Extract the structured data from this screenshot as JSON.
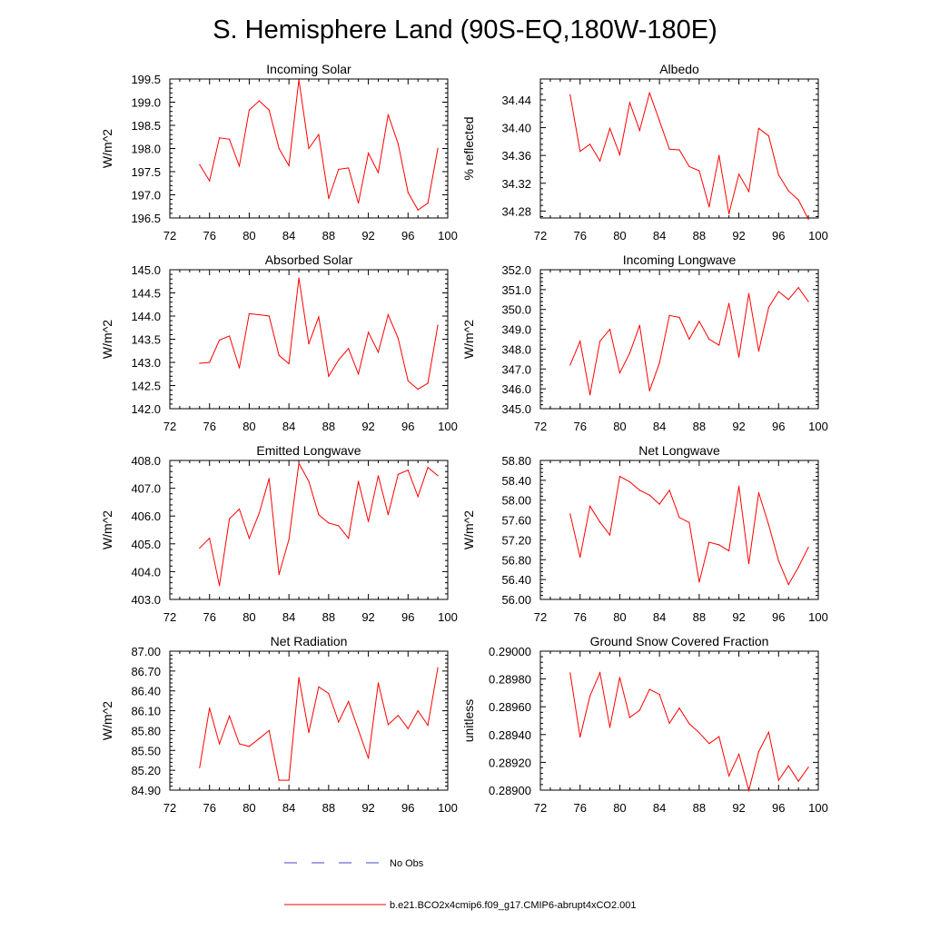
{
  "title": "S. Hemisphere Land (90S-EQ,180W-180E)",
  "legend": {
    "no_obs": "No Obs",
    "run": "b.e21.BCO2x4cmip6.f09_g17.CMIP6-abrupt4xCO2.001"
  },
  "colors": {
    "series": "#ff0000",
    "no_obs": "#4444cc",
    "axis": "#000000"
  },
  "chart_data": [
    {
      "type": "line",
      "title": "Incoming Solar",
      "ylabel": "W/m^2",
      "xlabel": "",
      "xlim": [
        72,
        100
      ],
      "ylim": [
        196.5,
        199.5
      ],
      "xticks": [
        "72",
        "76",
        "80",
        "84",
        "88",
        "92",
        "96",
        "100"
      ],
      "yticks": [
        "196.5",
        "197.0",
        "197.5",
        "198.0",
        "198.5",
        "199.0",
        "199.5"
      ],
      "x": [
        75,
        76,
        77,
        78,
        79,
        80,
        81,
        82,
        83,
        84,
        85,
        86,
        87,
        88,
        89,
        90,
        91,
        92,
        93,
        94,
        95,
        96,
        97,
        98,
        99
      ],
      "series": [
        {
          "name": "b.e21.BCO2x4cmip6.f09_g17.CMIP6-abrupt4xCO2.001",
          "values": [
            197.65,
            197.3,
            198.23,
            198.2,
            197.62,
            198.83,
            199.03,
            198.83,
            198.0,
            197.63,
            199.48,
            198.0,
            198.3,
            196.92,
            197.55,
            197.58,
            196.82,
            197.9,
            197.48,
            198.73,
            198.1,
            197.05,
            196.67,
            196.82,
            198.0
          ]
        }
      ]
    },
    {
      "type": "line",
      "title": "Albedo",
      "ylabel": "% reflected",
      "xlabel": "",
      "xlim": [
        72,
        100
      ],
      "ylim": [
        34.27,
        34.47
      ],
      "xticks": [
        "72",
        "76",
        "80",
        "84",
        "88",
        "92",
        "96",
        "100"
      ],
      "yticks": [
        "34.28",
        "34.32",
        "34.36",
        "34.40",
        "34.44"
      ],
      "x": [
        75,
        76,
        77,
        78,
        79,
        80,
        81,
        82,
        83,
        84,
        85,
        86,
        87,
        88,
        89,
        90,
        91,
        92,
        93,
        94,
        95,
        96,
        97,
        98,
        99
      ],
      "series": [
        {
          "name": "b.e21.BCO2x4cmip6.f09_g17.CMIP6-abrupt4xCO2.001",
          "values": [
            34.447,
            34.366,
            34.376,
            34.352,
            34.399,
            34.361,
            34.436,
            34.396,
            34.45,
            34.41,
            34.369,
            34.368,
            34.344,
            34.338,
            34.286,
            34.36,
            34.276,
            34.333,
            34.308,
            34.399,
            34.388,
            34.332,
            34.309,
            34.296,
            34.268
          ]
        }
      ]
    },
    {
      "type": "line",
      "title": "Absorbed Solar",
      "ylabel": "W/m^2",
      "xlabel": "",
      "xlim": [
        72,
        100
      ],
      "ylim": [
        142.0,
        145.0
      ],
      "xticks": [
        "72",
        "76",
        "80",
        "84",
        "88",
        "92",
        "96",
        "100"
      ],
      "yticks": [
        "142.0",
        "142.5",
        "143.0",
        "143.5",
        "144.0",
        "144.5",
        "145.0"
      ],
      "x": [
        75,
        76,
        77,
        78,
        79,
        80,
        81,
        82,
        83,
        84,
        85,
        86,
        87,
        88,
        89,
        90,
        91,
        92,
        93,
        94,
        95,
        96,
        97,
        98,
        99
      ],
      "series": [
        {
          "name": "b.e21.BCO2x4cmip6.f09_g17.CMIP6-abrupt4xCO2.001",
          "values": [
            142.98,
            143.0,
            143.48,
            143.57,
            142.88,
            144.05,
            144.03,
            144.0,
            143.15,
            142.97,
            144.82,
            143.4,
            143.98,
            142.7,
            143.05,
            143.3,
            142.75,
            143.65,
            143.22,
            144.03,
            143.52,
            142.6,
            142.42,
            142.55,
            143.8
          ]
        }
      ]
    },
    {
      "type": "line",
      "title": "Incoming Longwave",
      "ylabel": "W/m^2",
      "xlabel": "",
      "xlim": [
        72,
        100
      ],
      "ylim": [
        345.0,
        352.0
      ],
      "xticks": [
        "72",
        "76",
        "80",
        "84",
        "88",
        "92",
        "96",
        "100"
      ],
      "yticks": [
        "345.0",
        "346.0",
        "347.0",
        "348.0",
        "349.0",
        "350.0",
        "351.0",
        "352.0"
      ],
      "x": [
        75,
        76,
        77,
        78,
        79,
        80,
        81,
        82,
        83,
        84,
        85,
        86,
        87,
        88,
        89,
        90,
        91,
        92,
        93,
        94,
        95,
        96,
        97,
        98,
        99
      ],
      "series": [
        {
          "name": "b.e21.BCO2x4cmip6.f09_g17.CMIP6-abrupt4xCO2.001",
          "values": [
            347.2,
            348.4,
            345.7,
            348.4,
            349.0,
            346.8,
            347.8,
            349.2,
            345.9,
            347.3,
            349.7,
            349.6,
            348.5,
            349.4,
            348.5,
            348.2,
            350.3,
            347.6,
            350.8,
            347.9,
            350.1,
            350.9,
            350.5,
            351.1,
            350.4
          ]
        }
      ]
    },
    {
      "type": "line",
      "title": "Emitted Longwave",
      "ylabel": "W/m^2",
      "xlabel": "",
      "xlim": [
        72,
        100
      ],
      "ylim": [
        403.0,
        408.0
      ],
      "xticks": [
        "72",
        "76",
        "80",
        "84",
        "88",
        "92",
        "96",
        "100"
      ],
      "yticks": [
        "403.0",
        "404.0",
        "405.0",
        "406.0",
        "407.0",
        "408.0"
      ],
      "x": [
        75,
        76,
        77,
        78,
        79,
        80,
        81,
        82,
        83,
        84,
        85,
        86,
        87,
        88,
        89,
        90,
        91,
        92,
        93,
        94,
        95,
        96,
        97,
        98,
        99
      ],
      "series": [
        {
          "name": "b.e21.BCO2x4cmip6.f09_g17.CMIP6-abrupt4xCO2.001",
          "values": [
            404.85,
            405.2,
            403.5,
            405.9,
            406.25,
            405.2,
            406.1,
            407.35,
            403.9,
            405.15,
            407.9,
            407.25,
            406.05,
            405.75,
            405.65,
            405.2,
            407.25,
            405.8,
            407.45,
            406.05,
            407.5,
            407.65,
            406.7,
            407.75,
            407.45
          ]
        }
      ]
    },
    {
      "type": "line",
      "title": "Net Longwave",
      "ylabel": "W/m^2",
      "xlabel": "",
      "xlim": [
        72,
        100
      ],
      "ylim": [
        56.0,
        58.8
      ],
      "xticks": [
        "72",
        "76",
        "80",
        "84",
        "88",
        "92",
        "96",
        "100"
      ],
      "yticks": [
        "56.00",
        "56.40",
        "56.80",
        "57.20",
        "57.60",
        "58.00",
        "58.40",
        "58.80"
      ],
      "x": [
        75,
        76,
        77,
        78,
        79,
        80,
        81,
        82,
        83,
        84,
        85,
        86,
        87,
        88,
        89,
        90,
        91,
        92,
        93,
        94,
        95,
        96,
        97,
        98,
        99
      ],
      "series": [
        {
          "name": "b.e21.BCO2x4cmip6.f09_g17.CMIP6-abrupt4xCO2.001",
          "values": [
            57.72,
            56.85,
            57.88,
            57.56,
            57.3,
            58.48,
            58.37,
            58.2,
            58.1,
            57.92,
            58.2,
            57.65,
            57.55,
            56.35,
            57.15,
            57.1,
            56.98,
            58.28,
            56.72,
            58.15,
            57.5,
            56.78,
            56.3,
            56.65,
            57.05
          ]
        }
      ]
    },
    {
      "type": "line",
      "title": "Net Radiation",
      "ylabel": "W/m^2",
      "xlabel": "",
      "xlim": [
        72,
        100
      ],
      "ylim": [
        84.9,
        87.0
      ],
      "xticks": [
        "72",
        "76",
        "80",
        "84",
        "88",
        "92",
        "96",
        "100"
      ],
      "yticks": [
        "84.90",
        "85.20",
        "85.50",
        "85.80",
        "86.10",
        "86.40",
        "86.70",
        "87.00"
      ],
      "x": [
        75,
        76,
        77,
        78,
        79,
        80,
        81,
        82,
        83,
        84,
        85,
        86,
        87,
        88,
        89,
        90,
        91,
        92,
        93,
        94,
        95,
        96,
        97,
        98,
        99
      ],
      "series": [
        {
          "name": "b.e21.BCO2x4cmip6.f09_g17.CMIP6-abrupt4xCO2.001",
          "values": [
            85.24,
            86.14,
            85.6,
            86.02,
            85.6,
            85.56,
            85.68,
            85.8,
            85.05,
            85.05,
            86.6,
            85.77,
            86.46,
            86.36,
            85.93,
            86.24,
            85.81,
            85.38,
            86.52,
            85.89,
            86.03,
            85.83,
            86.1,
            85.88,
            86.75
          ]
        }
      ]
    },
    {
      "type": "line",
      "title": "Ground Snow Covered Fraction",
      "ylabel": "unitless",
      "xlabel": "",
      "xlim": [
        72,
        100
      ],
      "ylim": [
        0.289,
        0.29
      ],
      "xticks": [
        "72",
        "76",
        "80",
        "84",
        "88",
        "92",
        "96",
        "100"
      ],
      "yticks": [
        "0.28900",
        "0.28920",
        "0.28940",
        "0.28960",
        "0.28980",
        "0.29000"
      ],
      "x": [
        75,
        76,
        77,
        78,
        79,
        80,
        81,
        82,
        83,
        84,
        85,
        86,
        87,
        88,
        89,
        90,
        91,
        92,
        93,
        94,
        95,
        96,
        97,
        98,
        99
      ],
      "series": [
        {
          "name": "b.e21.BCO2x4cmip6.f09_g17.CMIP6-abrupt4xCO2.001",
          "values": [
            0.289843,
            0.289382,
            0.289677,
            0.289845,
            0.289452,
            0.289811,
            0.289523,
            0.289575,
            0.289725,
            0.289689,
            0.289481,
            0.289591,
            0.289478,
            0.289413,
            0.289335,
            0.289385,
            0.289102,
            0.289259,
            0.288998,
            0.289277,
            0.289417,
            0.289071,
            0.289175,
            0.289064,
            0.289165
          ]
        }
      ]
    }
  ]
}
